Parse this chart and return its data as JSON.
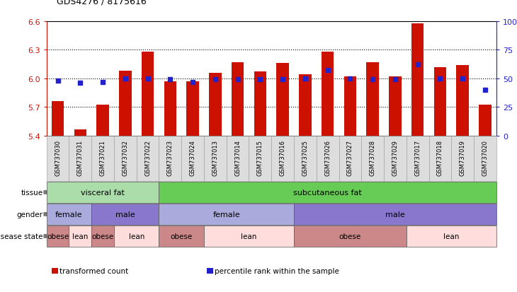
{
  "title": "GDS4276 / 8175616",
  "samples": [
    "GSM737030",
    "GSM737031",
    "GSM737021",
    "GSM737032",
    "GSM737022",
    "GSM737023",
    "GSM737024",
    "GSM737013",
    "GSM737014",
    "GSM737015",
    "GSM737016",
    "GSM737025",
    "GSM737026",
    "GSM737027",
    "GSM737028",
    "GSM737029",
    "GSM737017",
    "GSM737018",
    "GSM737019",
    "GSM737020"
  ],
  "bar_values": [
    5.76,
    5.46,
    5.72,
    6.08,
    6.28,
    5.97,
    5.97,
    6.06,
    6.17,
    6.07,
    6.16,
    6.04,
    6.28,
    6.02,
    6.17,
    6.02,
    6.58,
    6.12,
    6.14,
    5.72
  ],
  "percentile_values": [
    48,
    46,
    47,
    50,
    50,
    49,
    47,
    49,
    49,
    49,
    49,
    50,
    57,
    50,
    49,
    49,
    62,
    50,
    50,
    40
  ],
  "ylim_left": [
    5.4,
    6.6
  ],
  "ylim_right": [
    0,
    100
  ],
  "yticks_left": [
    5.4,
    5.7,
    6.0,
    6.3,
    6.6
  ],
  "yticks_right": [
    0,
    25,
    50,
    75,
    100
  ],
  "bar_color": "#cc1100",
  "dot_color": "#2222cc",
  "bar_bottom": 5.4,
  "tissue_groups": [
    {
      "label": "visceral fat",
      "start": 0,
      "end": 4,
      "color": "#aaddaa"
    },
    {
      "label": "subcutaneous fat",
      "start": 5,
      "end": 19,
      "color": "#66cc55"
    }
  ],
  "gender_groups": [
    {
      "label": "female",
      "start": 0,
      "end": 1,
      "color": "#aaaadd"
    },
    {
      "label": "male",
      "start": 2,
      "end": 4,
      "color": "#8877cc"
    },
    {
      "label": "female",
      "start": 5,
      "end": 10,
      "color": "#aaaadd"
    },
    {
      "label": "male",
      "start": 11,
      "end": 19,
      "color": "#8877cc"
    }
  ],
  "disease_groups": [
    {
      "label": "obese",
      "start": 0,
      "end": 0,
      "color": "#cc8888"
    },
    {
      "label": "lean",
      "start": 1,
      "end": 1,
      "color": "#ffdddd"
    },
    {
      "label": "obese",
      "start": 2,
      "end": 2,
      "color": "#cc8888"
    },
    {
      "label": "lean",
      "start": 3,
      "end": 4,
      "color": "#ffdddd"
    },
    {
      "label": "obese",
      "start": 5,
      "end": 6,
      "color": "#cc8888"
    },
    {
      "label": "lean",
      "start": 7,
      "end": 10,
      "color": "#ffdddd"
    },
    {
      "label": "obese",
      "start": 11,
      "end": 15,
      "color": "#cc8888"
    },
    {
      "label": "lean",
      "start": 16,
      "end": 19,
      "color": "#ffdddd"
    }
  ],
  "row_labels": [
    "tissue",
    "gender",
    "disease state"
  ],
  "legend_items": [
    {
      "label": "transformed count",
      "color": "#cc1100"
    },
    {
      "label": "percentile rank within the sample",
      "color": "#2222cc"
    }
  ],
  "gridlines": [
    5.7,
    6.0,
    6.3
  ]
}
